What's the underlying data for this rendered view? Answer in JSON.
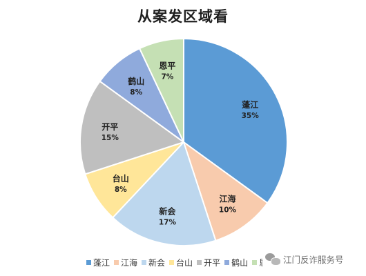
{
  "chart_data": {
    "type": "pie",
    "title": "从案发区域看",
    "categories": [
      "蓬江",
      "江海",
      "新会",
      "台山",
      "开平",
      "鹤山",
      "恩平"
    ],
    "values": [
      35,
      10,
      17,
      8,
      15,
      8,
      7
    ],
    "value_labels": [
      "35%",
      "10%",
      "17%",
      "8%",
      "15%",
      "8%",
      "7%"
    ],
    "colors": [
      "#5b9bd5",
      "#f8cbad",
      "#bdd7ee",
      "#ffe699",
      "#bfbfbf",
      "#8faadc",
      "#c5e0b4"
    ],
    "start_angle": "12 o'clock",
    "direction": "clockwise",
    "legend_position": "bottom"
  },
  "watermark": {
    "icon": "wechat-icon",
    "text": "江门反诈服务号"
  }
}
